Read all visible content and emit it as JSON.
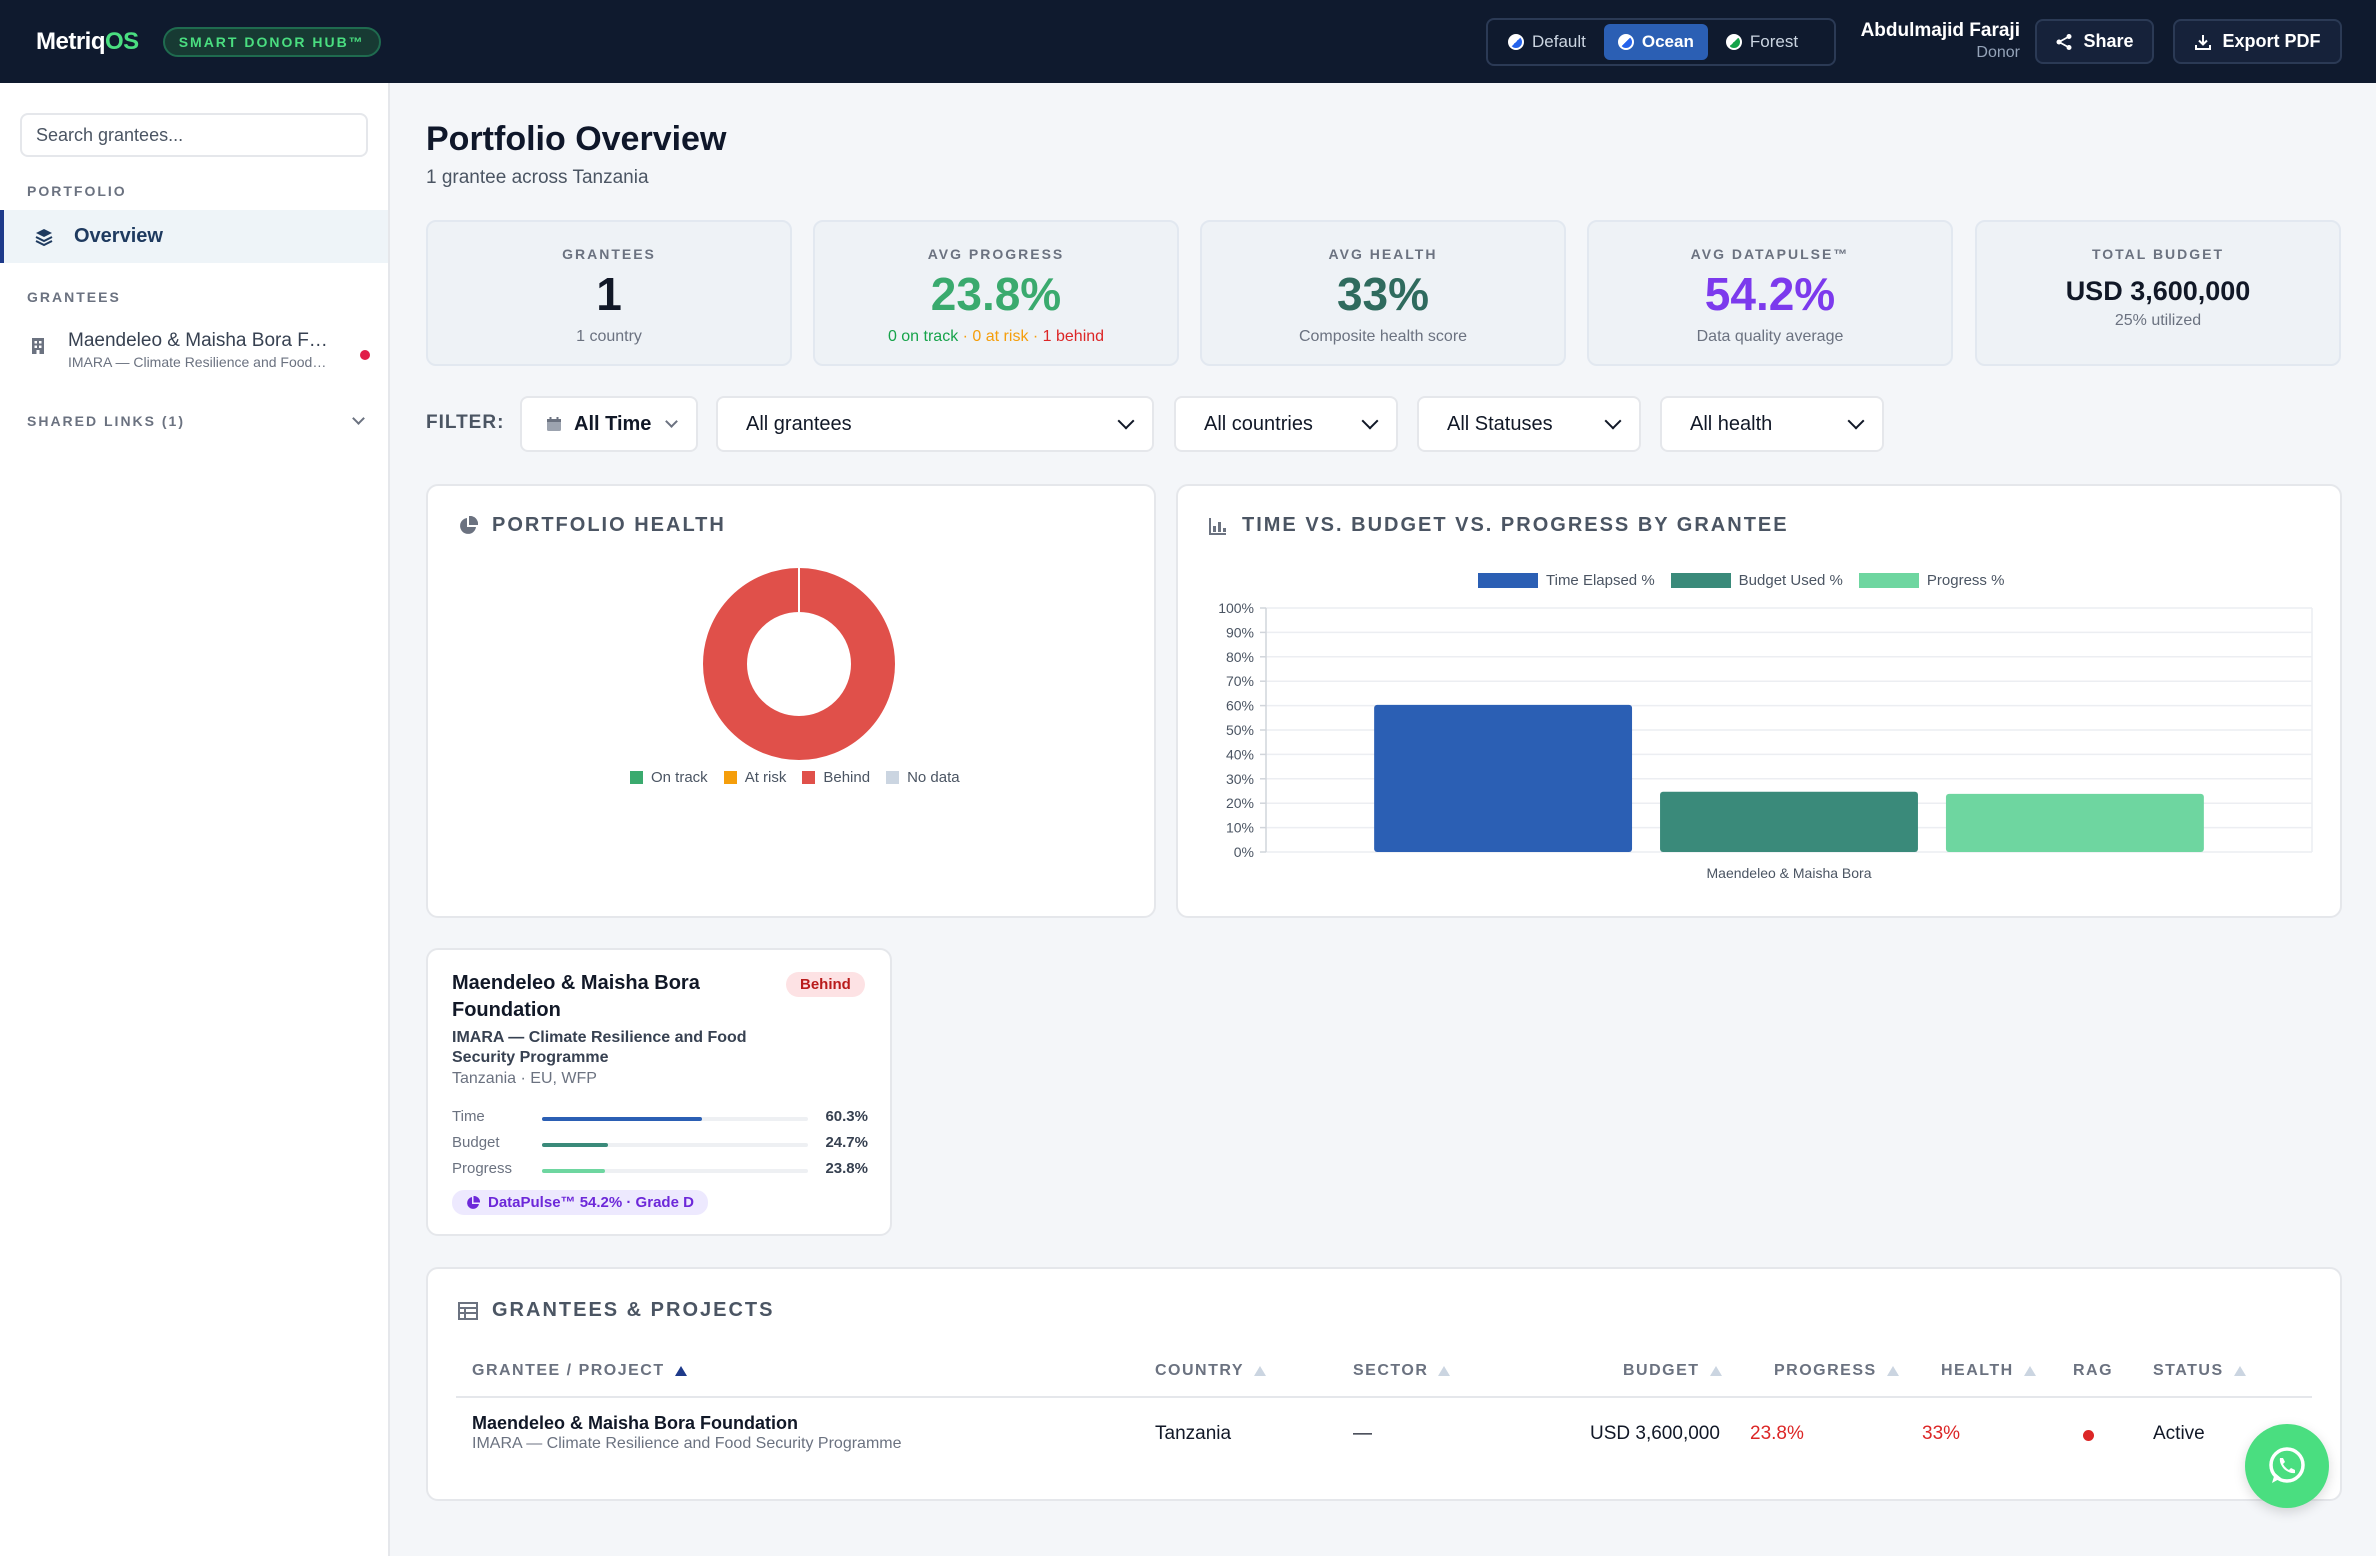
{
  "header": {
    "logo_main": "Metriq",
    "logo_accent": "OS",
    "hub_badge": "SMART DONOR HUB™",
    "themes": [
      {
        "label": "Default",
        "active": false
      },
      {
        "label": "Ocean",
        "active": true
      },
      {
        "label": "Forest",
        "active": false
      }
    ],
    "user_name": "Abdulmajid Faraji",
    "user_role": "Donor",
    "share_label": "Share",
    "export_label": "Export PDF"
  },
  "sidebar": {
    "search_placeholder": "Search grantees...",
    "portfolio_heading": "PORTFOLIO",
    "overview_label": "Overview",
    "grantees_heading": "GRANTEES",
    "grantee_name": "Maendeleo & Maisha Bora Foundation",
    "grantee_sub": "IMARA — Climate Resilience and Food Security Programme",
    "shared_links": "SHARED LINKS (1)"
  },
  "main": {
    "title": "Portfolio Overview",
    "subtitle": "1 grantee across Tanzania"
  },
  "kpis": [
    {
      "label": "GRANTEES",
      "value": "1",
      "sub": "1 country",
      "color": "#111827"
    },
    {
      "label": "AVG PROGRESS",
      "value": "23.8%",
      "color": "#3aaa6e"
    },
    {
      "label": "AVG HEALTH",
      "value": "33%",
      "sub": "Composite health score",
      "color": "#2f6b5e"
    },
    {
      "label": "AVG DATAPULSE™",
      "value": "54.2%",
      "sub": "Data quality average",
      "color": "#7c3aed"
    },
    {
      "label": "TOTAL BUDGET",
      "value": "USD 3,600,000",
      "sub": "25% utilized",
      "color": "#111827"
    }
  ],
  "progress_breakdown": {
    "on_track": "0 on track",
    "at_risk": "0 at risk",
    "behind": "1 behind",
    "sep": " · "
  },
  "filters": {
    "label": "FILTER:",
    "time": "All Time",
    "grantees": "All grantees",
    "countries": "All countries",
    "statuses": "All Statuses",
    "health": "All health"
  },
  "portfolio_health": {
    "title": "PORTFOLIO HEALTH"
  },
  "chart_data": [
    {
      "type": "pie",
      "title": "PORTFOLIO HEALTH",
      "categories": [
        "On track",
        "At risk",
        "Behind",
        "No data"
      ],
      "values": [
        0,
        0,
        1,
        0
      ],
      "colors": [
        "#3aaa6e",
        "#f59e0b",
        "#e0504a",
        "#cbd5e1"
      ],
      "legend": "bottom"
    },
    {
      "type": "bar",
      "title": "TIME VS. BUDGET VS. PROGRESS BY GRANTEE",
      "categories": [
        "Maendeleo & Maisha Bora"
      ],
      "series": [
        {
          "name": "Time Elapsed %",
          "values": [
            60.3
          ],
          "color": "#2b5fb4"
        },
        {
          "name": "Budget Used %",
          "values": [
            24.7
          ],
          "color": "#3a8a7a"
        },
        {
          "name": "Progress %",
          "values": [
            23.8
          ],
          "color": "#6ed6a0"
        }
      ],
      "ylim": [
        0,
        100
      ],
      "yticks": [
        "0%",
        "10%",
        "20%",
        "30%",
        "40%",
        "50%",
        "60%",
        "70%",
        "80%",
        "90%",
        "100%"
      ],
      "grid": true,
      "legend": "top"
    }
  ],
  "grantee_card": {
    "name": "Maendeleo & Maisha Bora Foundation",
    "status": "Behind",
    "programme": "IMARA — Climate Resilience and Food Security Programme",
    "location": "Tanzania · EU, WFP",
    "metrics": [
      {
        "label": "Time",
        "value": "60.3%",
        "pct": 60.3,
        "color": "#2b5fb4"
      },
      {
        "label": "Budget",
        "value": "24.7%",
        "pct": 24.7,
        "color": "#3a8a7a"
      },
      {
        "label": "Progress",
        "value": "23.8%",
        "pct": 23.8,
        "color": "#6ed6a0"
      }
    ],
    "datapulse": "DataPulse™ 54.2% · Grade D"
  },
  "table": {
    "title": "GRANTEES & PROJECTS",
    "headers": [
      "GRANTEE / PROJECT",
      "COUNTRY",
      "SECTOR",
      "BUDGET",
      "PROGRESS",
      "HEALTH",
      "RAG",
      "STATUS"
    ],
    "rows": [
      {
        "grantee": "Maendeleo & Maisha Bora Foundation",
        "project": "IMARA — Climate Resilience and Food Security Programme",
        "country": "Tanzania",
        "sector": "—",
        "budget": "USD 3,600,000",
        "progress": "23.8%",
        "health": "33%",
        "status": "Active"
      }
    ]
  }
}
